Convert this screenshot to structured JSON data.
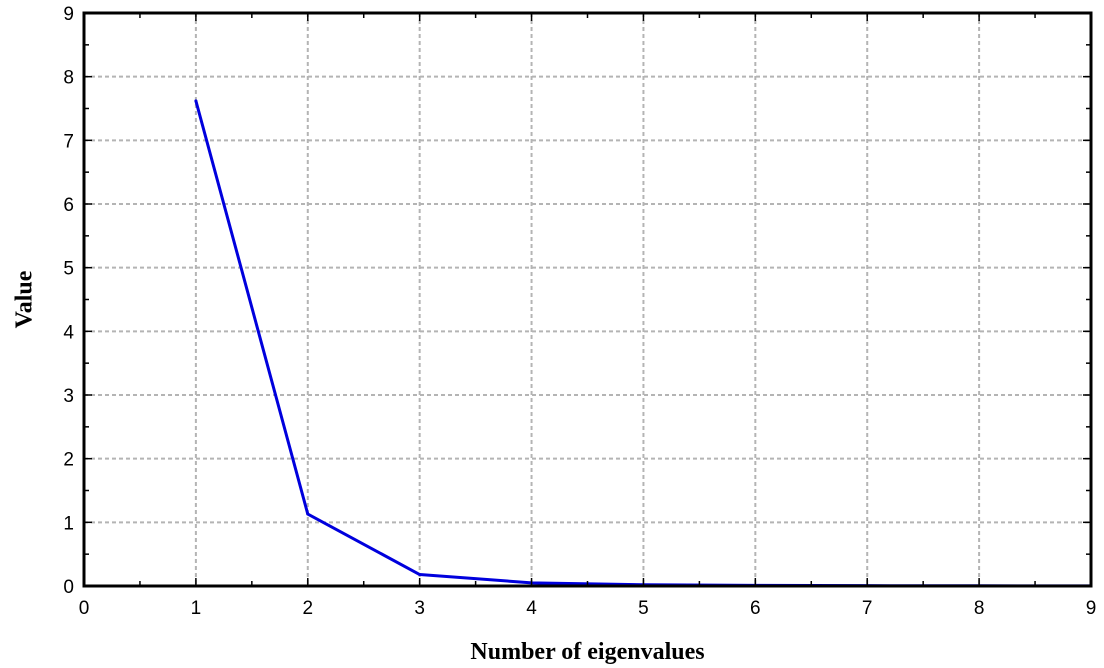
{
  "chart_data": {
    "type": "line",
    "title": "",
    "xlabel": "Number of eigenvalues",
    "ylabel": "Value",
    "xlim": [
      0,
      9
    ],
    "ylim": [
      0,
      9
    ],
    "xticks": [
      0,
      1,
      2,
      3,
      4,
      5,
      6,
      7,
      8,
      9
    ],
    "yticks": [
      0,
      1,
      2,
      3,
      4,
      5,
      6,
      7,
      8,
      9
    ],
    "grid": true,
    "legend": "none",
    "series": [
      {
        "color": "#0000dd",
        "x": [
          1,
          2,
          3,
          4,
          5,
          6,
          7,
          8,
          9
        ],
        "y": [
          7.62,
          1.13,
          0.18,
          0.05,
          0.02,
          0.01,
          0.005,
          0.003,
          0.002
        ]
      }
    ]
  }
}
